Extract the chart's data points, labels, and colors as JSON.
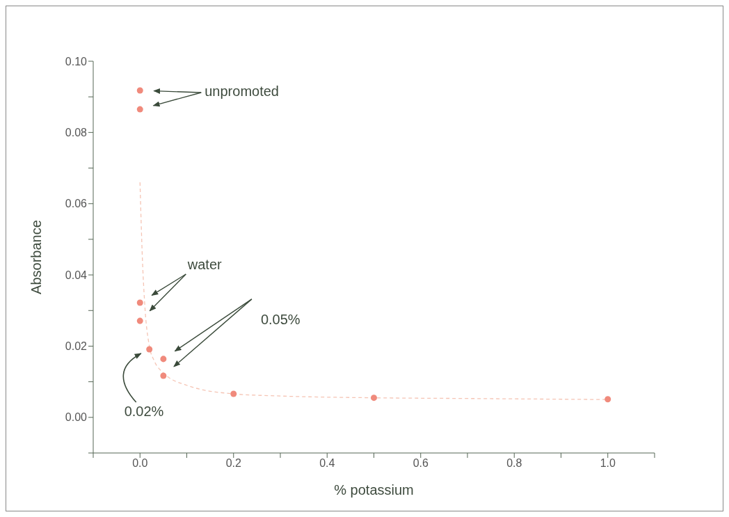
{
  "chart_data": {
    "type": "scatter",
    "xlabel": "% potassium",
    "ylabel": "Absorbance",
    "xlim": [
      -0.1,
      1.1
    ],
    "ylim": [
      -0.01,
      0.1
    ],
    "xticks": [
      {
        "value": -0.1,
        "label": null
      },
      {
        "value": 0.0,
        "label": "0.0"
      },
      {
        "value": 0.1,
        "label": null
      },
      {
        "value": 0.2,
        "label": "0.2"
      },
      {
        "value": 0.3,
        "label": null
      },
      {
        "value": 0.4,
        "label": "0.4"
      },
      {
        "value": 0.5,
        "label": null
      },
      {
        "value": 0.6,
        "label": "0.6"
      },
      {
        "value": 0.7,
        "label": null
      },
      {
        "value": 0.8,
        "label": "0.8"
      },
      {
        "value": 0.9,
        "label": null
      },
      {
        "value": 1.0,
        "label": "1.0"
      },
      {
        "value": 1.1,
        "label": null
      }
    ],
    "yticks": [
      {
        "value": -0.01,
        "label": null
      },
      {
        "value": 0.0,
        "label": "0.00"
      },
      {
        "value": 0.01,
        "label": null
      },
      {
        "value": 0.02,
        "label": "0.02"
      },
      {
        "value": 0.03,
        "label": null
      },
      {
        "value": 0.04,
        "label": "0.04"
      },
      {
        "value": 0.05,
        "label": null
      },
      {
        "value": 0.06,
        "label": "0.06"
      },
      {
        "value": 0.07,
        "label": null
      },
      {
        "value": 0.08,
        "label": "0.08"
      },
      {
        "value": 0.09,
        "label": null
      },
      {
        "value": 0.1,
        "label": "0.10"
      }
    ],
    "marker": "circle",
    "series": [
      {
        "type": "line",
        "color": "#f5c4b4",
        "line_style": "dashed",
        "marker": "none",
        "x": [
          0,
          0.005,
          0.01,
          0.02,
          0.03,
          0.05,
          0.1,
          0.2,
          0.3,
          0.5,
          0.7,
          1.0
        ],
        "values": [
          0.066,
          0.045,
          0.032,
          0.02,
          0.016,
          0.0125,
          0.009,
          0.0066,
          0.006,
          0.0055,
          0.0053,
          0.005
        ]
      },
      {
        "color": "#f08a7c",
        "x": [
          0,
          0,
          0,
          0,
          0.02,
          0.05,
          0.05,
          0.2,
          0.5,
          1.0
        ],
        "values": [
          0.0918,
          0.0865,
          0.0322,
          0.0271,
          0.0191,
          0.0164,
          0.0117,
          0.0066,
          0.0055,
          0.0051
        ]
      }
    ],
    "annotations": [
      "unpromoted",
      "water",
      "0.05%",
      "0.02%"
    ]
  }
}
